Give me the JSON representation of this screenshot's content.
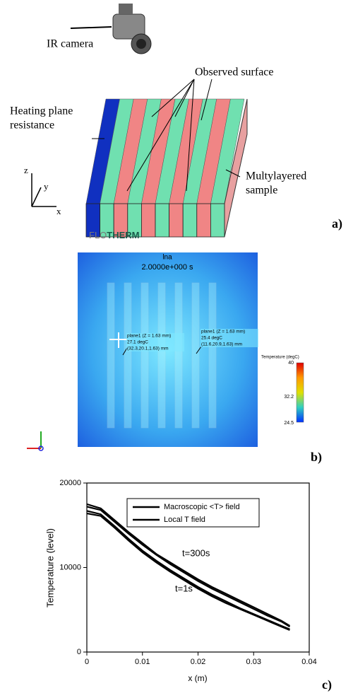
{
  "panel_a": {
    "label": "a)",
    "camera": "IR camera",
    "surface": "Observed surface",
    "heating": [
      "Heating plane",
      "resistance"
    ],
    "sample": [
      "Multylayered",
      "sample"
    ],
    "axes": [
      "z",
      "y",
      "x"
    ]
  },
  "panel_b": {
    "label": "b)",
    "brand": [
      "FLO",
      "THERM"
    ],
    "title": "lna",
    "time": "2.0000e+000 s",
    "probes": [
      [
        "plane1 (Z = 1.63 mm)",
        "27.1 degC",
        "(32.3,20.1,1.63) mm"
      ],
      [
        "plane1 (Z = 1.63 mm)",
        "25.4 degC",
        "(11.6,20.9,1.63) mm"
      ]
    ],
    "colorbar": {
      "title": "Temperature (degC)",
      "ticks": [
        40,
        32.2,
        24.5
      ]
    }
  },
  "panel_c_label": "c)",
  "chart_data": {
    "type": "line",
    "xlabel": "x (m)",
    "ylabel": "Temperature (level)",
    "x": [
      0,
      0.0025,
      0.005,
      0.0075,
      0.01,
      0.0125,
      0.015,
      0.0175,
      0.02,
      0.0225,
      0.025,
      0.0275,
      0.03,
      0.0325,
      0.035,
      0.0365
    ],
    "series": [
      {
        "name": "Macroscopic <T> field",
        "color": "#000000",
        "values": [
          17500,
          17000,
          15600,
          14200,
          12900,
          11600,
          10600,
          9600,
          8600,
          7700,
          6900,
          6100,
          5300,
          4500,
          3700,
          3100
        ]
      },
      {
        "name": "Local T field",
        "color": "#000000",
        "values": [
          17200,
          16800,
          15400,
          14000,
          12700,
          11500,
          10400,
          9400,
          8400,
          7500,
          6700,
          5900,
          5100,
          4300,
          3600,
          3000
        ]
      },
      {
        "name": "Macroscopic <T> field",
        "color": "#000000",
        "values": [
          16700,
          16300,
          14900,
          13400,
          12000,
          10800,
          9700,
          8700,
          7700,
          6800,
          6000,
          5200,
          4500,
          3800,
          3100,
          2700
        ]
      },
      {
        "name": "Local T field",
        "color": "#000000",
        "values": [
          16400,
          16100,
          14700,
          13200,
          11800,
          10600,
          9500,
          8500,
          7500,
          6600,
          5800,
          5100,
          4400,
          3700,
          3000,
          2600
        ]
      }
    ],
    "annotations": [
      "t=300s",
      "t=1s"
    ],
    "xlim": [
      0,
      0.04
    ],
    "xticks": [
      0,
      0.01,
      0.02,
      0.03,
      0.04
    ],
    "ylim": [
      0,
      20000
    ],
    "yticks": [
      0,
      10000,
      20000
    ]
  }
}
